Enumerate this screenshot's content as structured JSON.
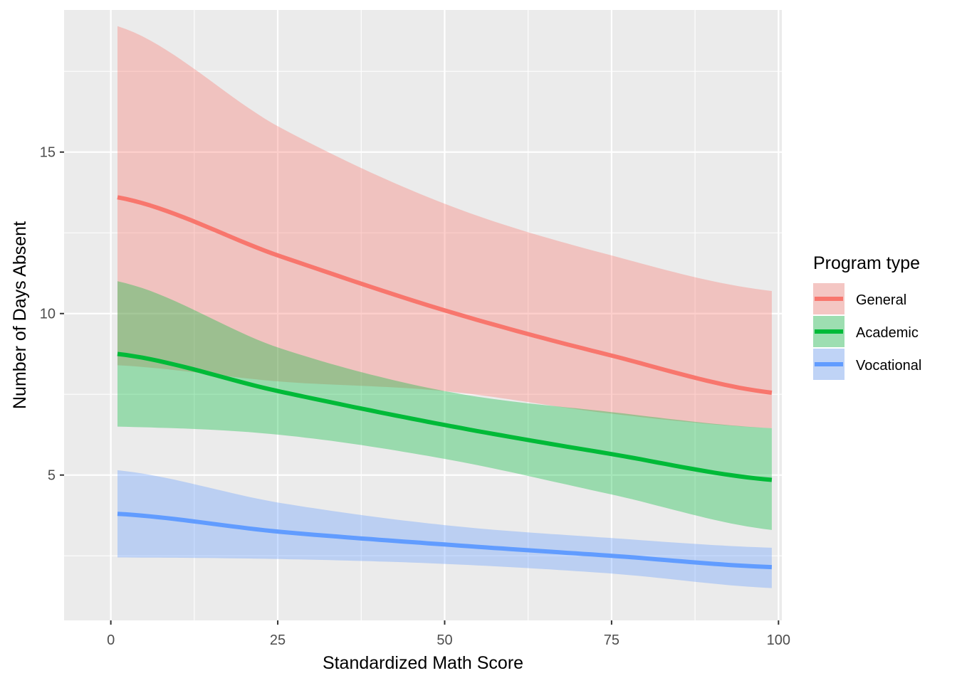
{
  "chart_data": {
    "type": "line",
    "xlabel": "Standardized Math Score",
    "ylabel": "Number of Days Absent",
    "xlim": [
      -7,
      100.5
    ],
    "ylim": [
      0.5,
      19.4
    ],
    "x_ticks": [
      0,
      25,
      50,
      75,
      100
    ],
    "x_tick_labels": [
      "0",
      "25",
      "50",
      "75",
      "100"
    ],
    "y_ticks": [
      5,
      10,
      15
    ],
    "y_tick_labels": [
      "5",
      "10",
      "15"
    ],
    "grid": true,
    "legend": {
      "title": "Program type",
      "position": "right"
    },
    "x": [
      1,
      25,
      50,
      75,
      99
    ],
    "series": [
      {
        "name": "General",
        "color": "#F8766D",
        "values": [
          13.6,
          11.8,
          10.1,
          8.7,
          7.55
        ],
        "lower": [
          8.4,
          7.9,
          7.6,
          6.9,
          6.45
        ],
        "upper": [
          18.9,
          15.8,
          13.4,
          11.8,
          10.7
        ]
      },
      {
        "name": "Academic",
        "color": "#00BA38",
        "values": [
          8.75,
          7.6,
          6.55,
          5.65,
          4.85
        ],
        "lower": [
          6.5,
          6.25,
          5.5,
          4.4,
          3.3
        ],
        "upper": [
          11.0,
          8.95,
          7.6,
          6.95,
          6.45
        ]
      },
      {
        "name": "Vocational",
        "color": "#619CFF",
        "values": [
          3.8,
          3.25,
          2.85,
          2.5,
          2.15
        ],
        "lower": [
          2.45,
          2.4,
          2.25,
          1.95,
          1.5
        ],
        "upper": [
          5.15,
          4.15,
          3.45,
          3.05,
          2.75
        ]
      }
    ]
  }
}
